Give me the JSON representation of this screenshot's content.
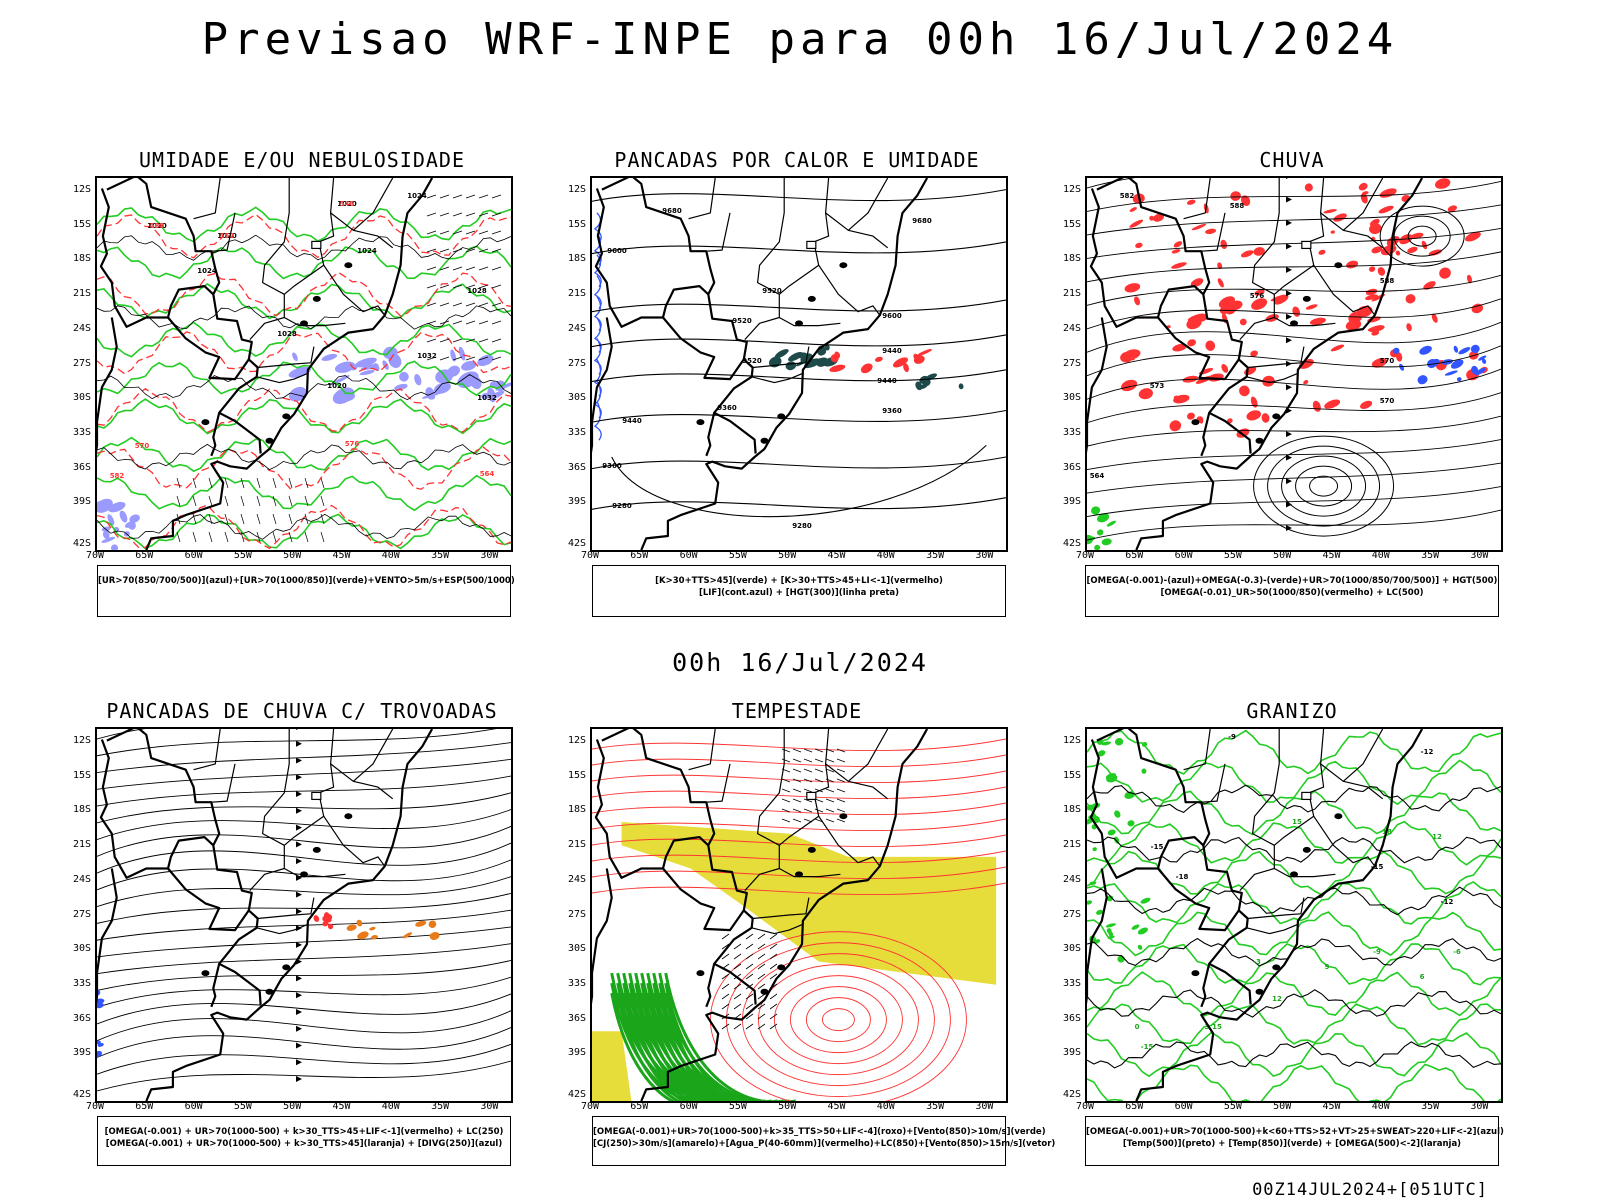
{
  "title": "Previsao WRF-INPE  para 00h 16/Jul/2024",
  "mid_title": "00h 16/Jul/2024",
  "footer": "00Z14JUL2024+[051UTC]",
  "lat_labels": [
    "12S",
    "15S",
    "18S",
    "21S",
    "24S",
    "27S",
    "30S",
    "33S",
    "36S",
    "39S",
    "42S"
  ],
  "lon_labels": [
    "70W",
    "65W",
    "60W",
    "55W",
    "50W",
    "45W",
    "40W",
    "35W",
    "30W"
  ],
  "panels": [
    {
      "title": "UMIDADE E/OU NEBULOSIDADE",
      "legend": [
        "[UR>70(850/700/500)](azul)+[UR>70(1000/850)](verde)+VENTO>5m/s+ESP(500/1000)"
      ],
      "contour_labels": [
        "1020",
        "1020",
        "1020",
        "1024",
        "1024",
        "1024",
        "1028",
        "1028",
        "1032",
        "1032",
        "1020",
        "570",
        "576",
        "564",
        "582",
        "588",
        "552",
        "546"
      ]
    },
    {
      "title": "PANCADAS POR CALOR E UMIDADE",
      "legend": [
        "[K>30+TTS>45](verde)  +  [K>30+TTS>45+LI<-1](vermelho)",
        "[LIF](cont.azul)  +  [HGT(300)](linha preta)"
      ],
      "contour_labels": [
        "9680",
        "9680",
        "9600",
        "9520",
        "9600",
        "9520",
        "9440",
        "9520",
        "9440",
        "9360",
        "9360",
        "9440",
        "9360",
        "9280",
        "9280"
      ]
    },
    {
      "title": "CHUVA",
      "legend": [
        "[OMEGA(-0.001)-(azul)+OMEGA(-0.3)-(verde)+UR>70(1000/850/700/500)]  +  HGT(500)",
        "[OMEGA(-0.01)_UR>50(1000/850)(vermelho)  +  LC(500)"
      ],
      "contour_labels": [
        "582",
        "588",
        "588",
        "576",
        "570",
        "573",
        "570",
        "564"
      ]
    },
    {
      "title": "PANCADAS DE CHUVA C/ TROVOADAS",
      "legend": [
        "[OMEGA(-0.001)  +  UR>70(1000-500)  +  k>30_TTS>45+LIF<-1](vermelho)  +  LC(250)",
        "[OMEGA(-0.001)  +  UR>70(1000-500)  +  k>30_TTS>45](laranja)  +  [DIVG(250)](azul)"
      ],
      "contour_labels": []
    },
    {
      "title": "TEMPESTADE",
      "legend": [
        "[OMEGA(-0.001)+UR>70(1000-500)+k>35_TTS>50+LIF<-4](roxo)+[Vento(850)>10m/s](verde)",
        "[CJ(250)>30m/s](amarelo)+[Agua_P(40-60mm)](vermelho)+LC(850)+[Vento(850)>15m/s](vetor)"
      ],
      "contour_labels": []
    },
    {
      "title": "GRANIZO",
      "legend": [
        "[OMEGA(-0.001)+UR>70(1000-500)+k<60+TTS>52+VT>25+SWEAT>220+LIF<-2](azul)",
        "[Temp(500)](preto)  +  [Temp(850)](verde)  +  [OMEGA(500)<-2](laranja)"
      ],
      "contour_labels": [
        "-9",
        "-12",
        "-15",
        "-18",
        "-15",
        "-12",
        "-9",
        "-6",
        "-3",
        "0",
        "3",
        "6",
        "9",
        "12",
        "15",
        "18",
        "12",
        "15",
        "-15"
      ]
    }
  ],
  "colors": {
    "blue": "#3355ff",
    "green": "#22cc22",
    "red": "#ff3333",
    "orange": "#e87a1a",
    "yellow": "#e6dc3a",
    "darkteal": "#1e4a4a",
    "lavender": "#9a9aff"
  }
}
